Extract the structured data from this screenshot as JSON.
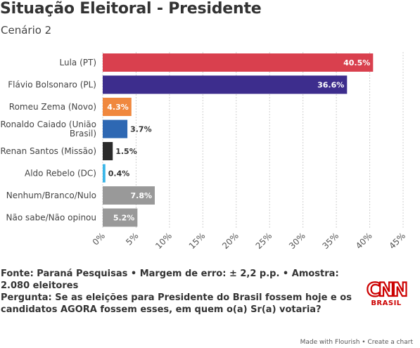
{
  "header": {
    "title": "Situação Eleitoral - Presidente",
    "subtitle": "Cenário 2"
  },
  "chart_data": {
    "type": "bar",
    "orientation": "horizontal",
    "categories": [
      "Lula (PT)",
      "Flávio Bolsonaro (PL)",
      "Romeu Zema (Novo)",
      "Ronaldo Caiado (União Brasil)",
      "Renan Santos (Missão)",
      "Aldo Rebelo (DC)",
      "Nenhum/Branco/Nulo",
      "Não sabe/Não opinou"
    ],
    "values": [
      40.5,
      36.6,
      4.3,
      3.7,
      1.5,
      0.4,
      7.8,
      5.2
    ],
    "value_labels": [
      "40.5%",
      "36.6%",
      "4.3%",
      "3.7%",
      "1.5%",
      "0.4%",
      "7.8%",
      "5.2%"
    ],
    "colors": [
      "#d9404e",
      "#3d2d8d",
      "#f0883e",
      "#2e68b3",
      "#2b2b2b",
      "#3bb6e8",
      "#999999",
      "#999999"
    ],
    "xlim": [
      0,
      45
    ],
    "xticks": [
      0,
      5,
      10,
      15,
      20,
      25,
      30,
      35,
      40,
      45
    ],
    "xtick_labels": [
      "0%",
      "5%",
      "10%",
      "15%",
      "20%",
      "25%",
      "30%",
      "35%",
      "40%",
      "45%"
    ],
    "grid": true,
    "xlabel": "",
    "ylabel": ""
  },
  "footer": {
    "source": "Fonte: Paraná Pesquisas • Margem de erro: ± 2,2 p.p. • Amostra: 2.080 eleitores",
    "question": "Pergunta: Se as eleições para Presidente do Brasil fossem hoje e os candidatos AGORA fossem esses, em quem o(a) Sr(a) votaria?",
    "logo_text": "CNN",
    "logo_subtext": "BRASIL",
    "made_with": "Made with Flourish • Create a chart"
  },
  "colors": {
    "brand": "#cc0000",
    "text": "#333333",
    "grid": "#cccccc"
  }
}
